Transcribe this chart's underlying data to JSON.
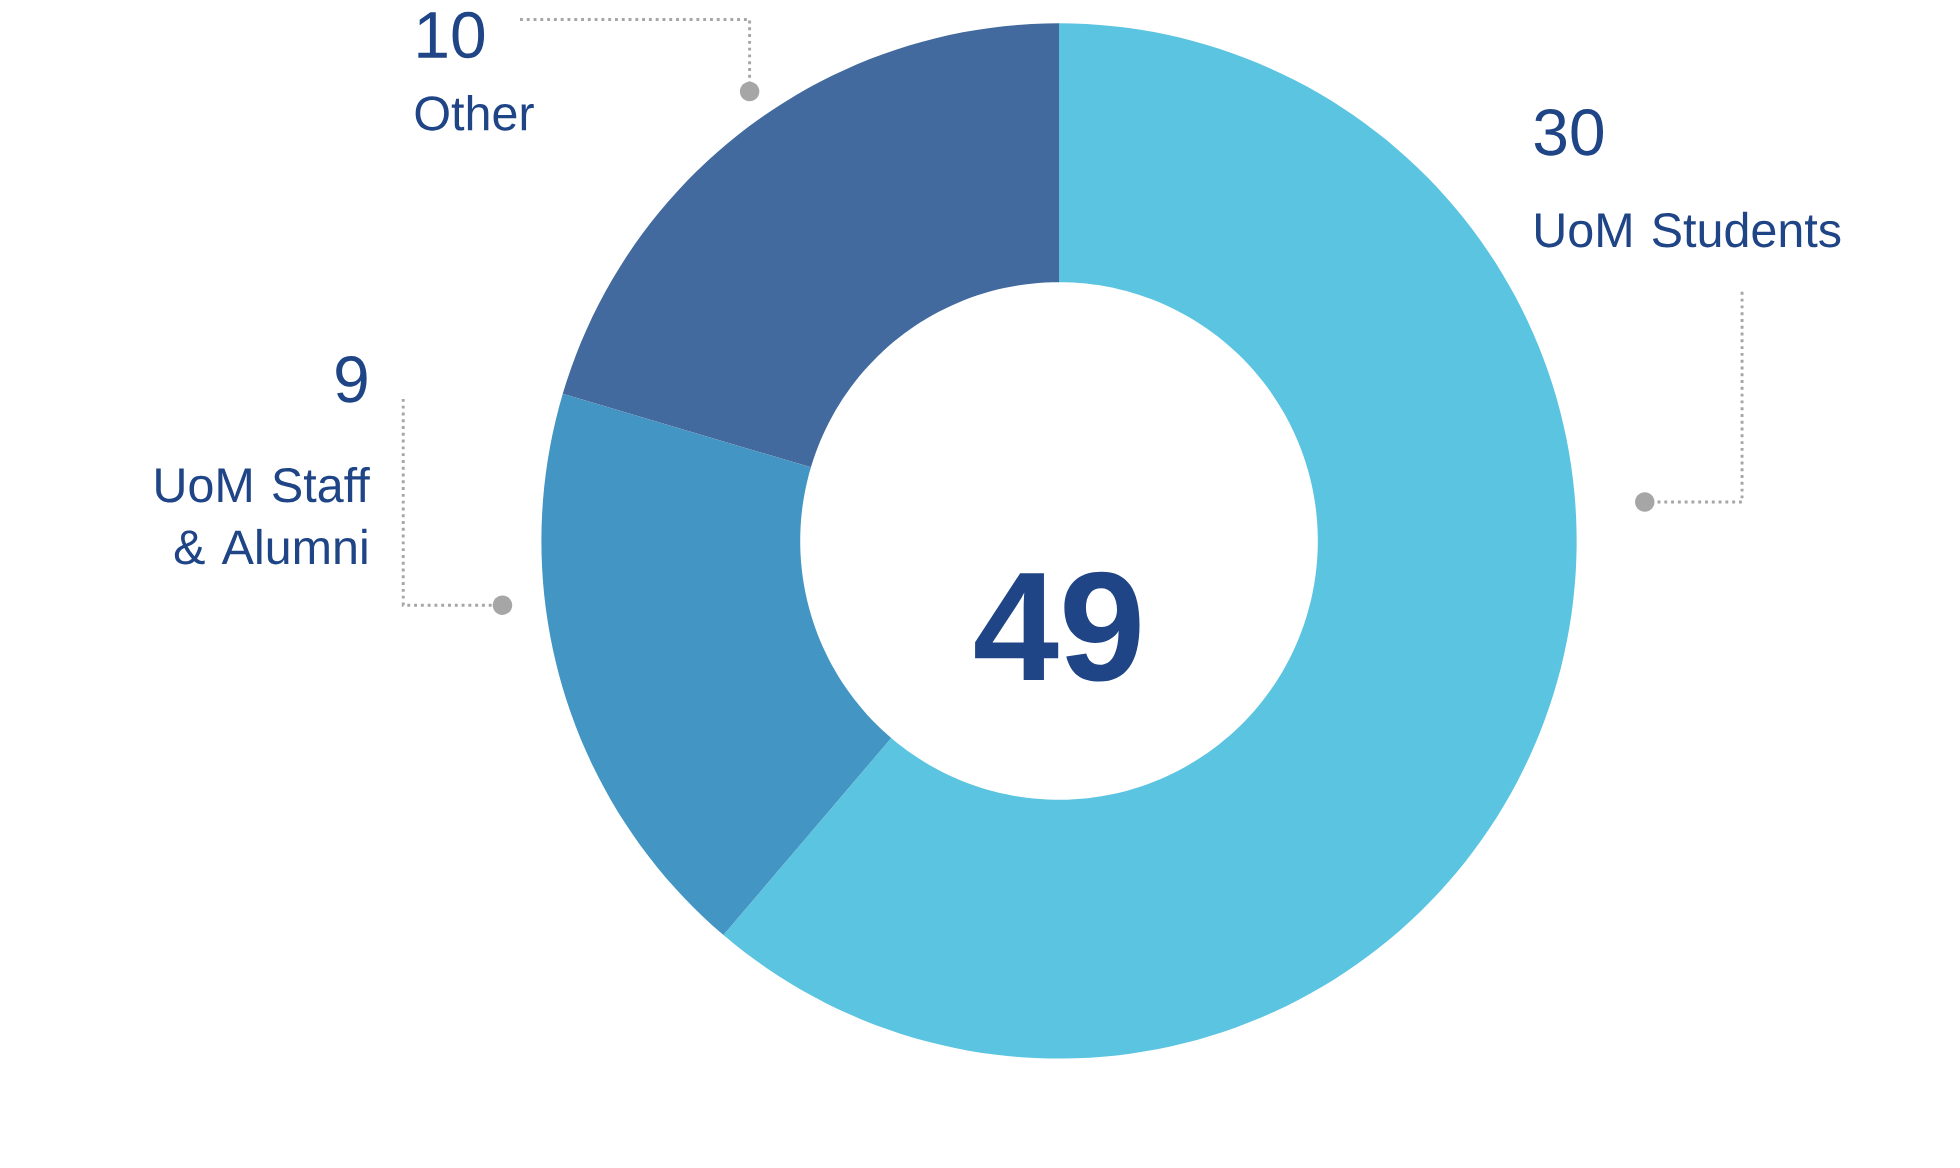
{
  "chart_data": {
    "type": "donut",
    "categories": [
      "UoM Students",
      "UoM Staff & Alumni",
      "Other"
    ],
    "values": [
      30,
      9,
      10
    ],
    "colors": [
      "#5bc4e1",
      "#4396c4",
      "#426a9f"
    ],
    "data_labels": true,
    "annotations": [
      "49"
    ]
  }
}
